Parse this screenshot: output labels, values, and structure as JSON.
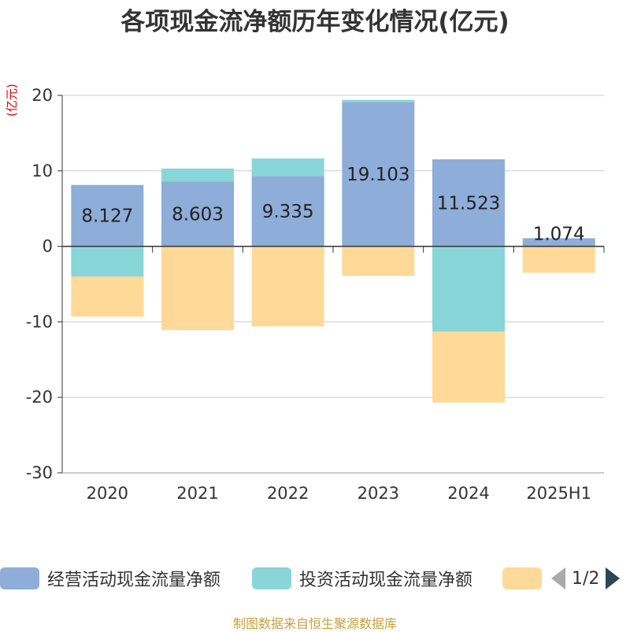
{
  "chart_data": {
    "type": "bar",
    "stacked": true,
    "title": "各项现金流净额历年变化情况(亿元)",
    "unit_label": "(亿元)",
    "categories": [
      "2020",
      "2021",
      "2022",
      "2023",
      "2024",
      "2025H1"
    ],
    "ylim": [
      -30,
      20
    ],
    "yticks": [
      20,
      10,
      0,
      -10,
      -20,
      -30
    ],
    "grid": true,
    "series": [
      {
        "name": "经营活动现金流量净额",
        "color": "#8eadd9",
        "values": [
          8.127,
          8.603,
          9.335,
          19.103,
          11.523,
          1.074
        ],
        "show_labels": true
      },
      {
        "name": "投资活动现金流量净额",
        "color": "#88d6d8",
        "values": [
          -4.0,
          1.7,
          2.3,
          0.3,
          -11.3,
          0.0
        ]
      },
      {
        "name": "",
        "color": "#ffd998",
        "values": [
          -5.3,
          -11.1,
          -10.6,
          -3.9,
          -9.4,
          -3.5
        ]
      }
    ],
    "legend_position": "bottom"
  },
  "legend": {
    "items": [
      {
        "label": "经营活动现金流量净额",
        "color": "#8eadd9"
      },
      {
        "label": "投资活动现金流量净额",
        "color": "#88d6d8"
      },
      {
        "label": "",
        "color": "#ffd998"
      }
    ],
    "page_indicator": "1/2"
  },
  "footer": "制图数据来自恒生聚源数据库"
}
